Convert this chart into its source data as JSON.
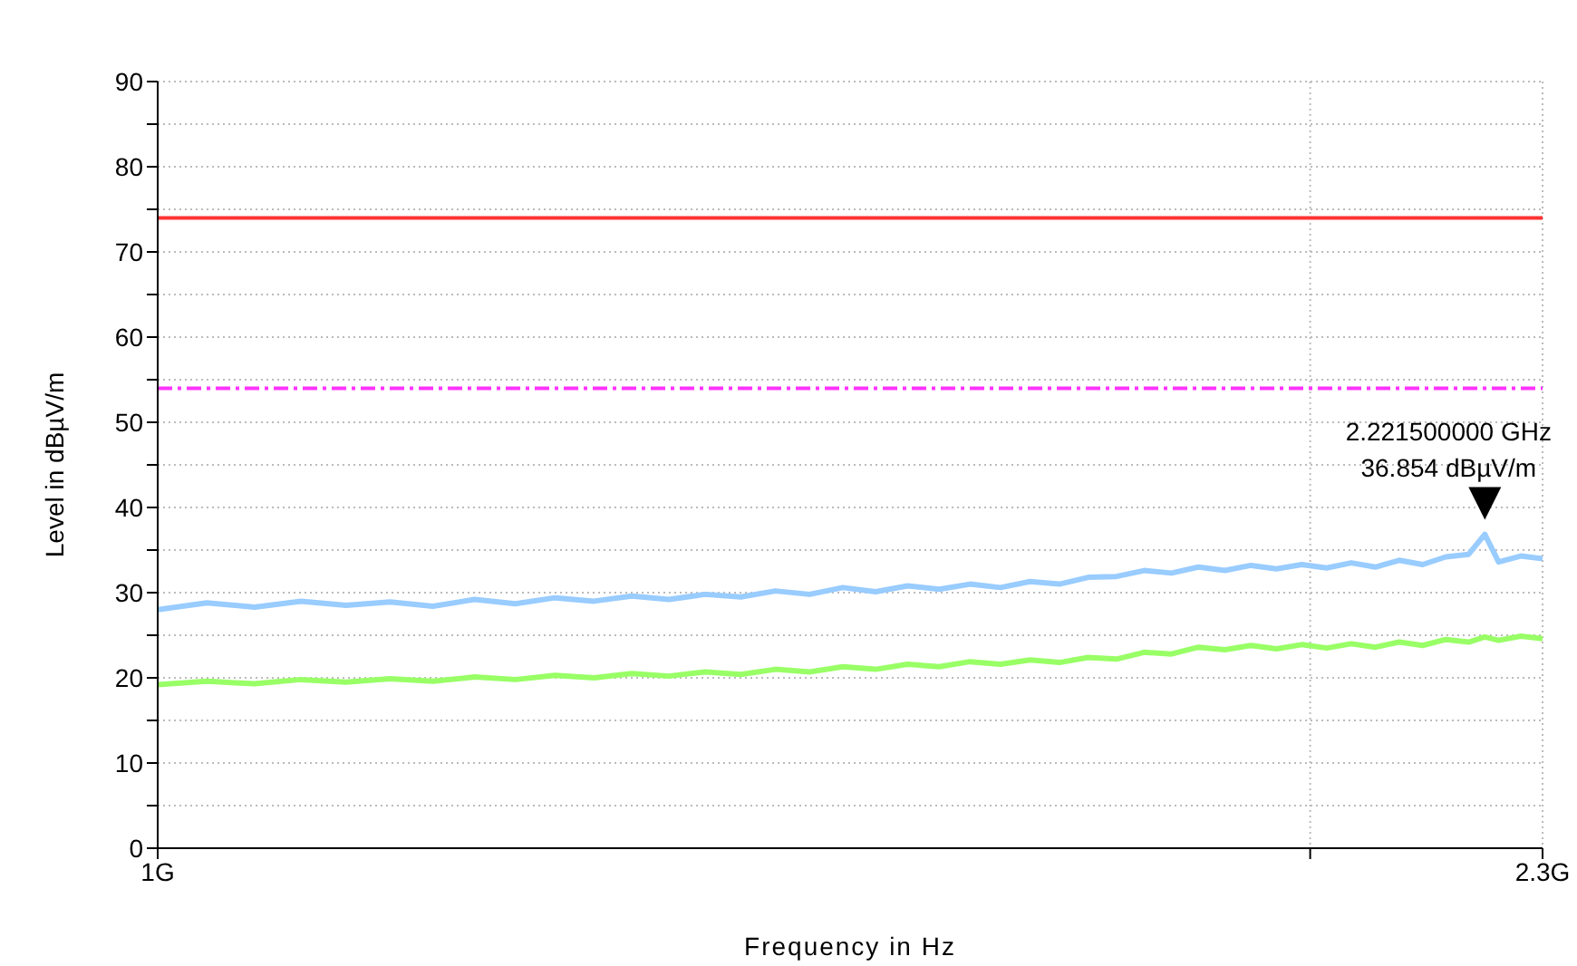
{
  "chart_data": {
    "type": "line",
    "xlabel": "Frequency in Hz",
    "ylabel": "Level in dBµV/m",
    "x": [
      1.0,
      1.03,
      1.06,
      1.09,
      1.12,
      1.15,
      1.18,
      1.21,
      1.24,
      1.27,
      1.3,
      1.33,
      1.36,
      1.39,
      1.42,
      1.45,
      1.48,
      1.51,
      1.54,
      1.57,
      1.6,
      1.63,
      1.66,
      1.69,
      1.72,
      1.75,
      1.78,
      1.81,
      1.84,
      1.87,
      1.9,
      1.93,
      1.96,
      1.99,
      2.02,
      2.05,
      2.08,
      2.11,
      2.14,
      2.17,
      2.2,
      2.2215,
      2.24,
      2.27,
      2.3
    ],
    "series": [
      {
        "color": "#99ccff",
        "values": [
          28.0,
          28.8,
          28.3,
          29.0,
          28.5,
          28.9,
          28.4,
          29.2,
          28.7,
          29.4,
          29.0,
          29.6,
          29.2,
          29.8,
          29.5,
          30.2,
          29.8,
          30.6,
          30.1,
          30.8,
          30.4,
          31.0,
          30.6,
          31.3,
          31.0,
          31.8,
          31.9,
          32.6,
          32.3,
          33.0,
          32.6,
          33.2,
          32.8,
          33.3,
          32.9,
          33.5,
          33.0,
          33.8,
          33.3,
          34.2,
          34.5,
          36.854,
          33.6,
          34.3,
          34.0
        ]
      },
      {
        "color": "#99ff66",
        "values": [
          19.2,
          19.6,
          19.3,
          19.8,
          19.5,
          19.9,
          19.6,
          20.1,
          19.8,
          20.3,
          20.0,
          20.5,
          20.2,
          20.7,
          20.4,
          21.0,
          20.7,
          21.3,
          21.0,
          21.6,
          21.3,
          21.9,
          21.6,
          22.1,
          21.8,
          22.4,
          22.2,
          23.0,
          22.8,
          23.6,
          23.3,
          23.8,
          23.4,
          23.9,
          23.5,
          24.0,
          23.6,
          24.2,
          23.8,
          24.5,
          24.2,
          24.8,
          24.4,
          24.9,
          24.6
        ]
      }
    ],
    "xlim": [
      1.0,
      2.3
    ],
    "log": "x",
    "xticks": [
      {
        "value": 1.0,
        "label": "1G"
      },
      {
        "value": 2.0,
        "label": null
      },
      {
        "value": 2.3,
        "label": "2.3G"
      }
    ],
    "ylim": [
      0,
      90
    ],
    "yticks": [
      0,
      {
        "value": 5,
        "label": null
      },
      10,
      {
        "value": 15,
        "label": null
      },
      20,
      {
        "value": 25,
        "label": null
      },
      30,
      {
        "value": 35,
        "label": null
      },
      40,
      {
        "value": 45,
        "label": null
      },
      50,
      {
        "value": 55,
        "label": null
      },
      60,
      {
        "value": 65,
        "label": null
      },
      70,
      {
        "value": 75,
        "label": null
      },
      80,
      {
        "value": 85,
        "label": null
      },
      90
    ],
    "grid": true,
    "marker": "none",
    "line_style": "solid",
    "ref_lines": [
      {
        "axis": "y",
        "value": 74,
        "color": "#ff3333",
        "line_style": "solid"
      },
      {
        "axis": "y",
        "value": 54,
        "color": "#ff33ff",
        "line_style": "dashed"
      }
    ],
    "annotations": [
      {
        "text": "2.221500000 GHz\n36.854 dBµV/m",
        "x": 2.2215,
        "y": 36.854
      }
    ]
  }
}
